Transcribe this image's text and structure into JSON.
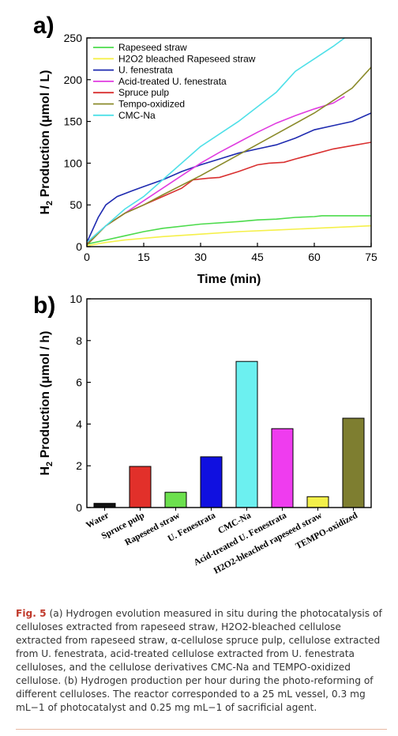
{
  "chart_data": [
    {
      "panel_label": "a)",
      "type": "line",
      "xlabel": "Time (min)",
      "ylabel_parts": {
        "main": "H",
        "sub": "2",
        "rest": " Production (μmol / L)"
      },
      "xlim": [
        0,
        75
      ],
      "ylim": [
        0,
        250
      ],
      "xticks": [
        0,
        15,
        30,
        45,
        60,
        75
      ],
      "yticks": [
        0,
        50,
        100,
        150,
        200,
        250
      ],
      "legend_position": "top-left",
      "series": [
        {
          "name": "Rapeseed straw",
          "color": "#4cdb4c",
          "x": [
            0,
            5,
            10,
            15,
            20,
            30,
            40,
            45,
            50,
            55,
            60,
            62,
            70,
            75
          ],
          "y": [
            3,
            8,
            13,
            18,
            22,
            27,
            30,
            32,
            33,
            35,
            36,
            37,
            37,
            37
          ]
        },
        {
          "name": "H2O2 bleached Rapeseed  straw",
          "color": "#f5f04a",
          "x": [
            0,
            5,
            10,
            15,
            20,
            30,
            40,
            50,
            60,
            70,
            75
          ],
          "y": [
            1,
            5,
            8,
            10,
            12,
            15,
            18,
            20,
            22,
            24,
            25
          ]
        },
        {
          "name": "U. fenestrata",
          "color": "#1f2bb0",
          "x": [
            0,
            3,
            5,
            8,
            12,
            15,
            20,
            25,
            30,
            35,
            40,
            45,
            50,
            55,
            60,
            65,
            70,
            75
          ],
          "y": [
            5,
            35,
            50,
            60,
            67,
            72,
            80,
            90,
            98,
            105,
            112,
            117,
            122,
            130,
            140,
            145,
            150,
            160
          ]
        },
        {
          "name": "Acid-treated U. fenestrata",
          "color": "#e03ce0",
          "x": [
            0,
            5,
            10,
            15,
            20,
            25,
            30,
            35,
            40,
            45,
            50,
            55,
            60,
            65,
            68
          ],
          "y": [
            5,
            25,
            40,
            55,
            70,
            85,
            100,
            113,
            125,
            137,
            148,
            157,
            165,
            172,
            180
          ]
        },
        {
          "name": "Spruce pulp",
          "color": "#d93030",
          "x": [
            0,
            5,
            10,
            15,
            20,
            25,
            28,
            32,
            35,
            40,
            45,
            48,
            52,
            55,
            60,
            65,
            70,
            75
          ],
          "y": [
            3,
            25,
            40,
            50,
            60,
            70,
            80,
            82,
            83,
            90,
            98,
            100,
            101,
            105,
            111,
            117,
            121,
            125
          ]
        },
        {
          "name": "Tempo-oxidized",
          "color": "#8a8a2a",
          "x": [
            0,
            5,
            10,
            15,
            20,
            30,
            40,
            50,
            60,
            70,
            75
          ],
          "y": [
            2,
            25,
            40,
            50,
            62,
            85,
            110,
            135,
            160,
            190,
            215
          ]
        },
        {
          "name": "CMC-Na",
          "color": "#4fe0e8",
          "x": [
            0,
            5,
            10,
            15,
            20,
            30,
            40,
            50,
            55,
            60,
            65,
            68
          ],
          "y": [
            5,
            25,
            45,
            60,
            80,
            120,
            150,
            185,
            210,
            225,
            240,
            250
          ]
        }
      ]
    },
    {
      "panel_label": "b)",
      "type": "bar",
      "ylabel_parts": {
        "main": "H",
        "sub": "2",
        "rest": " Production (μmol / h)"
      },
      "ylim": [
        0,
        10
      ],
      "yticks": [
        0,
        2,
        4,
        6,
        8,
        10
      ],
      "categories": [
        "Water",
        "Spruce pulp",
        "Rapeseed straw",
        "U. Fenestrata",
        "CMC-Na",
        "Acid-treated U. Fenestrata",
        "H2O2-bleached rapeseed straw",
        "TEMPO-oxidized"
      ],
      "values": [
        0.2,
        1.97,
        0.73,
        2.43,
        7.0,
        3.78,
        0.52,
        4.28
      ],
      "colors": [
        "#111111",
        "#e2302a",
        "#6ce04e",
        "#1010e0",
        "#6cf0f0",
        "#ef3cef",
        "#f3f04a",
        "#7e7e30"
      ]
    }
  ],
  "caption": {
    "fig_label": "Fig. 5",
    "text": " (a) Hydrogen evolution measured in situ during the photocatalysis of celluloses extracted from rapeseed straw, H2O2-bleached cellulose extracted from rapeseed straw, α-cellulose spruce pulp, cellulose extracted from U. fenestrata, acid-treated cellulose extracted from U. fenestrata celluloses, and the cellulose derivatives CMC-Na and TEMPO-oxidized cellulose. (b) Hydrogen production per hour during the photo-reforming of different celluloses. The reactor corresponded to a 25 mL vessel, 0.3 mg mL−1 of photocatalyst and 0.25 mg mL−1 of sacrificial agent."
  }
}
